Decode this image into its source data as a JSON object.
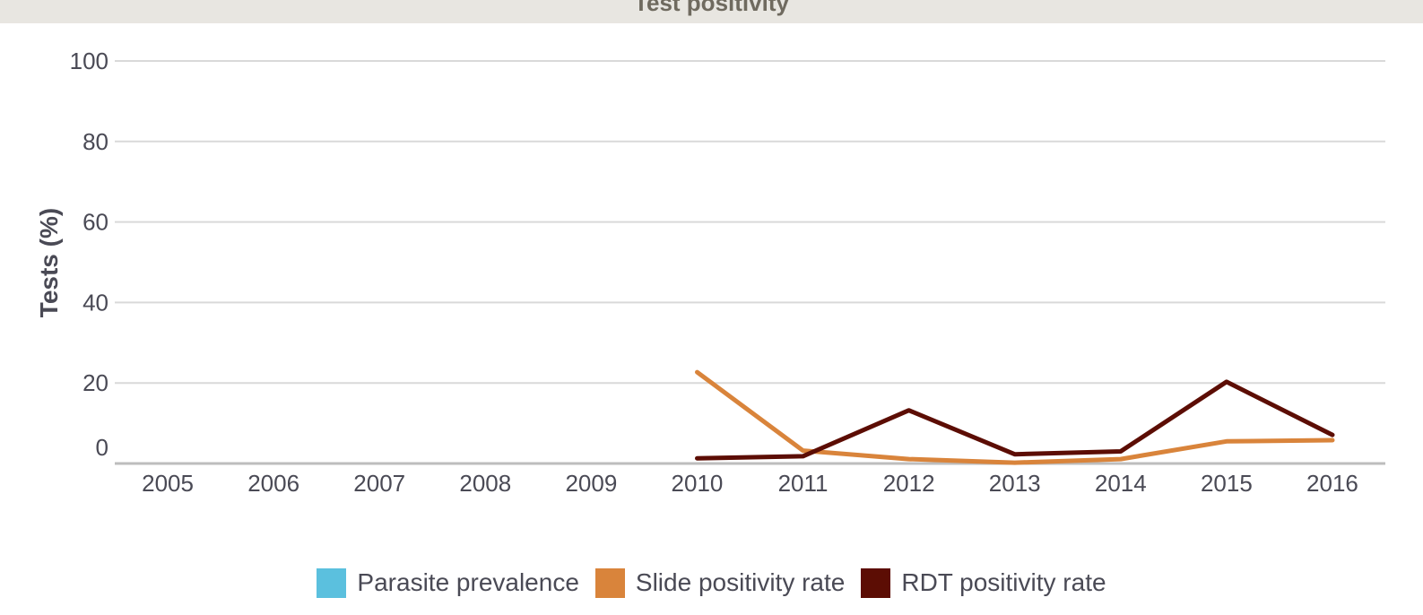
{
  "header": {
    "title": "Test positivity"
  },
  "chart_data": {
    "type": "line",
    "title": "Test positivity",
    "xlabel": "",
    "ylabel": "Tests (%)",
    "ylim": [
      0,
      100
    ],
    "yticks": [
      0,
      20,
      40,
      60,
      80,
      100
    ],
    "categories": [
      "2005",
      "2006",
      "2007",
      "2008",
      "2009",
      "2010",
      "2011",
      "2012",
      "2013",
      "2014",
      "2015",
      "2016"
    ],
    "grid": true,
    "legend_position": "bottom",
    "series": [
      {
        "name": "Parasite prevalence",
        "color": "#5bc0de",
        "values": [
          null,
          null,
          null,
          null,
          null,
          null,
          null,
          null,
          null,
          null,
          null,
          null
        ]
      },
      {
        "name": "Slide positivity rate",
        "color": "#d9843b",
        "values": [
          null,
          null,
          null,
          null,
          null,
          22.7,
          3.2,
          1.1,
          0.2,
          1.1,
          5.5,
          5.8
        ]
      },
      {
        "name": "RDT positivity rate",
        "color": "#5c0d04",
        "values": [
          null,
          null,
          null,
          null,
          null,
          1.3,
          1.8,
          13.2,
          2.3,
          3.0,
          20.3,
          7.1
        ]
      }
    ]
  }
}
